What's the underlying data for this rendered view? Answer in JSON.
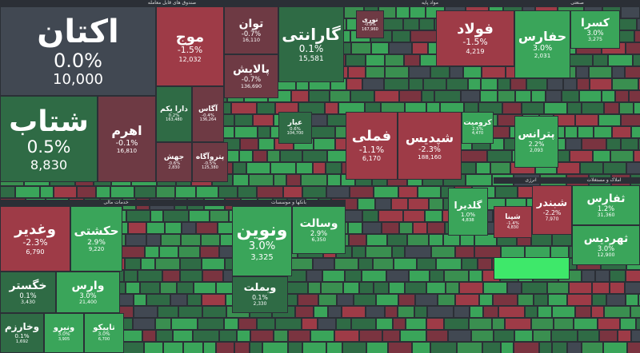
{
  "sectors": [
    {
      "label": "صندوق های قابل معامله"
    },
    {
      "label": "مواد پایه"
    },
    {
      "label": "صنعتی"
    },
    {
      "label": "خدمات مالی"
    },
    {
      "label": "بانکها و موسسات"
    },
    {
      "label": "املاک و مستغلات"
    },
    {
      "label": "انرژی"
    }
  ],
  "tiles": [
    {
      "name": "اکتان",
      "change": "0.0%",
      "price": "10,000"
    },
    {
      "name": "شتاب",
      "change": "0.5%",
      "price": "8,830"
    },
    {
      "name": "اهرم",
      "change": "-0.1%",
      "price": "16,810"
    },
    {
      "name": "موج",
      "change": "-1.5%",
      "price": "12,032"
    },
    {
      "name": "توان",
      "change": "-0.7%",
      "price": "16,110"
    },
    {
      "name": "پالایش",
      "change": "-0.7%",
      "price": "136,690"
    },
    {
      "name": "گارانتی",
      "change": "0.1%",
      "price": "15,581"
    },
    {
      "name": "دارا یکم",
      "change": "0.2%",
      "price": "163,480"
    },
    {
      "name": "آگاس",
      "change": "-0.4%",
      "price": "136,264"
    },
    {
      "name": "عیار",
      "change": "0.6%",
      "price": "104,700"
    },
    {
      "name": "پتروآگاه",
      "change": "-0.5%",
      "price": "125,380"
    },
    {
      "name": "جهش",
      "change": "-0.6%",
      "price": "2,830"
    },
    {
      "name": "فولاد",
      "change": "-1.5%",
      "price": "4,219"
    },
    {
      "name": "نوری",
      "change": "-0.9%",
      "price": "167,960"
    },
    {
      "name": "فملی",
      "change": "-1.1%",
      "price": "6,170"
    },
    {
      "name": "شپدیس",
      "change": "-2.3%",
      "price": "188,160"
    },
    {
      "name": "کرومیت",
      "change": "2.5%",
      "price": "4,470"
    },
    {
      "name": "حفارس",
      "change": "3.0%",
      "price": "2,031"
    },
    {
      "name": "کسرا",
      "change": "3.0%",
      "price": "3,275"
    },
    {
      "name": "پترانس",
      "change": "2.2%",
      "price": "2,093"
    },
    {
      "name": "وغدیر",
      "change": "-2.3%",
      "price": "6,790"
    },
    {
      "name": "حکشتی",
      "change": "2.9%",
      "price": "9,220"
    },
    {
      "name": "خگستر",
      "change": "0.1%",
      "price": "3,430"
    },
    {
      "name": "وارس",
      "change": "3.0%",
      "price": "21,400"
    },
    {
      "name": "وخارزم",
      "change": "0.1%",
      "price": "1,692"
    },
    {
      "name": "ونیرو",
      "change": "3.0%",
      "price": "3,905"
    },
    {
      "name": "تاپیکو",
      "change": "3.0%",
      "price": "6,700"
    },
    {
      "name": "ونوین",
      "change": "3.0%",
      "price": "3,325"
    },
    {
      "name": "وسالت",
      "change": "2.9%",
      "price": "6,350"
    },
    {
      "name": "وبملت",
      "change": "0.1%",
      "price": "2,330"
    },
    {
      "name": "گلدیرا",
      "change": "1.0%",
      "price": "4,838"
    },
    {
      "name": "شبندر",
      "change": "-2.2%",
      "price": "7,970"
    },
    {
      "name": "شپنا",
      "change": "-1.4%",
      "price": "4,830"
    },
    {
      "name": "ثفارس",
      "change": "1.2%",
      "price": "31,360"
    },
    {
      "name": "ثهردیس",
      "change": "3.0%",
      "price": "12,900"
    }
  ]
}
